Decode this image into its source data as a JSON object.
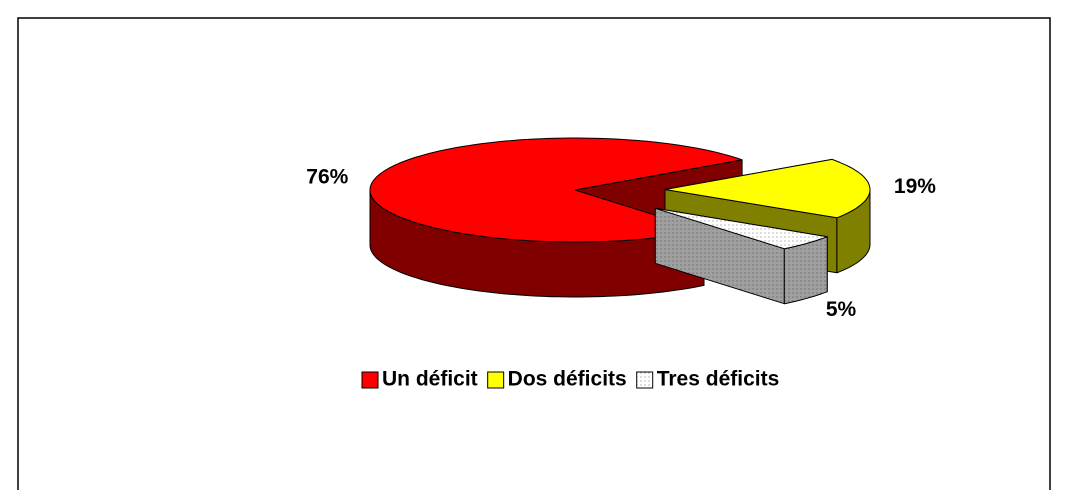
{
  "chart_data": {
    "type": "pie",
    "categories": [
      "Un déficit",
      "Dos déficits",
      "Tres déficits"
    ],
    "values": [
      76,
      19,
      5
    ],
    "value_labels": [
      "76%",
      "19%",
      "5%"
    ],
    "colors": [
      "#ff0000",
      "#ffff00",
      "#ffffff"
    ],
    "legend": "bottom"
  }
}
